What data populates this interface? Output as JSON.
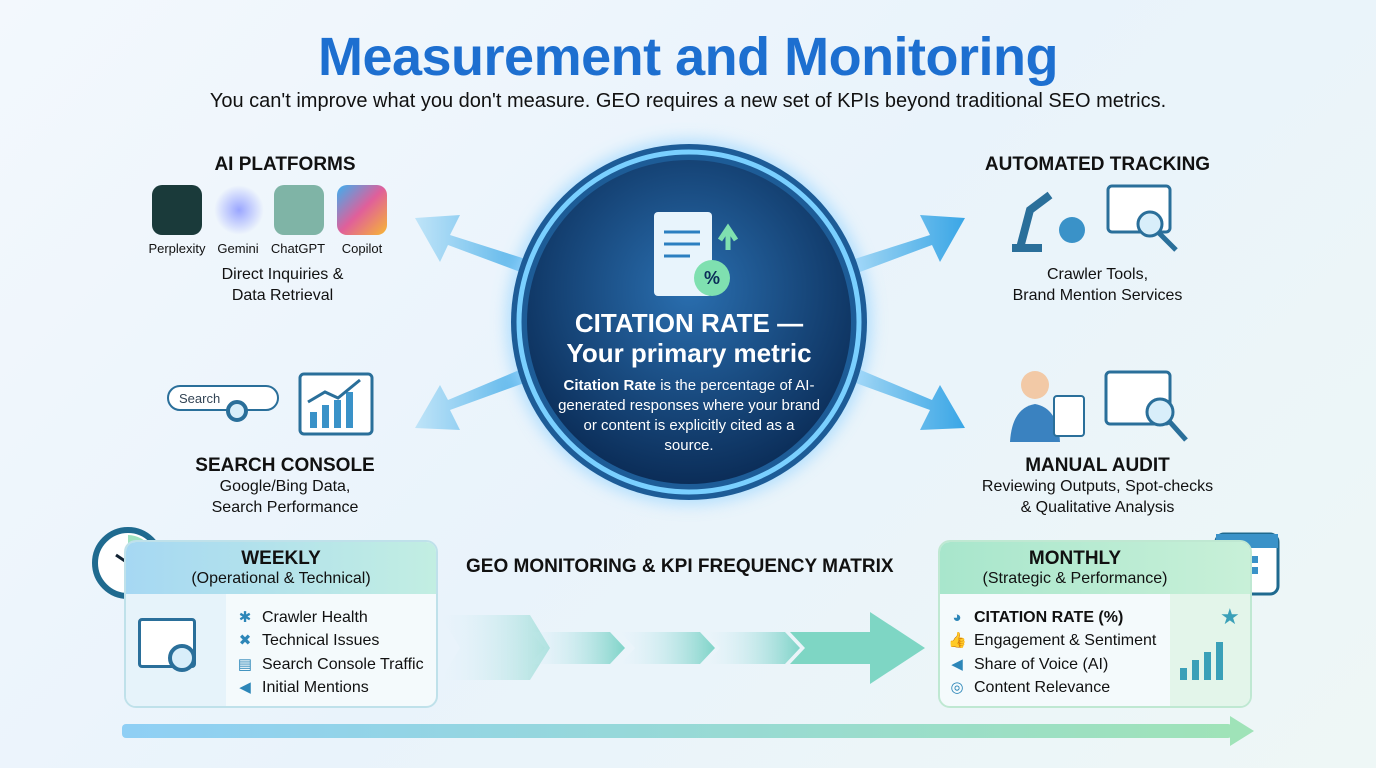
{
  "header": {
    "title": "Measurement and Monitoring",
    "subtitle": "You can't improve what you don't measure. GEO requires a new set of KPIs beyond traditional SEO metrics."
  },
  "center": {
    "heading_line1": "CITATION RATE —",
    "heading_line2": "Your primary metric",
    "desc_bold": "Citation Rate",
    "desc_rest": " is the percentage of AI-generated responses where your brand or content is explicitly cited as a source.",
    "icon": "document-percent-icon"
  },
  "ai_platforms": {
    "heading": "AI PLATFORMS",
    "platforms": [
      {
        "name": "Perplexity",
        "color": "#1a3a3a"
      },
      {
        "name": "Gemini",
        "color": "#6b6ff0"
      },
      {
        "name": "ChatGPT",
        "color": "#7fb4a6"
      },
      {
        "name": "Copilot",
        "color": "#e05f9a"
      }
    ],
    "desc_line1": "Direct Inquiries &",
    "desc_line2": "Data Retrieval"
  },
  "automated_tracking": {
    "heading": "AUTOMATED TRACKING",
    "desc_line1": "Crawler Tools,",
    "desc_line2": "Brand Mention Services"
  },
  "search_console": {
    "heading": "SEARCH CONSOLE",
    "search_placeholder": "Search",
    "desc_line1": "Google/Bing Data,",
    "desc_line2": "Search Performance"
  },
  "manual_audit": {
    "heading": "MANUAL AUDIT",
    "desc_line1": "Reviewing Outputs, Spot-checks",
    "desc_line2": "& Qualitative Analysis"
  },
  "matrix_title": "GEO MONITORING & KPI FREQUENCY MATRIX",
  "weekly": {
    "title": "WEEKLY",
    "subtitle": "(Operational & Technical)",
    "items": [
      {
        "label": "Crawler Health",
        "icon": "bug-icon"
      },
      {
        "label": "Technical Issues",
        "icon": "tools-icon"
      },
      {
        "label": "Search Console Traffic",
        "icon": "console-icon"
      },
      {
        "label": "Initial Mentions",
        "icon": "megaphone-icon"
      }
    ]
  },
  "monthly": {
    "title": "MONTHLY",
    "subtitle": "(Strategic & Performance)",
    "items": [
      {
        "label": "CITATION RATE (%)",
        "icon": "pie-chart-icon"
      },
      {
        "label": "Engagement & Sentiment",
        "icon": "thumbs-up-icon"
      },
      {
        "label": "Share of Voice (AI)",
        "icon": "megaphone-icon"
      },
      {
        "label": "Content Relevance",
        "icon": "target-icon"
      }
    ]
  },
  "colors": {
    "title": "#1d6fd0",
    "accent_blue": "#4fb0e8",
    "accent_green": "#8fdcb0",
    "circle_dark": "#0f3a6b"
  }
}
